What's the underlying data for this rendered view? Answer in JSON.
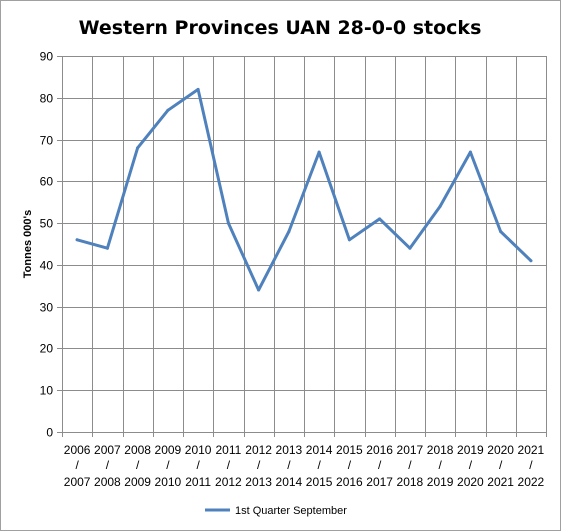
{
  "chart_data": {
    "type": "line",
    "title": "Western Provinces UAN 28-0-0 stocks",
    "xlabel": "",
    "ylabel": "Tonnes 000's",
    "ylim": [
      0,
      90
    ],
    "yticks": [
      0,
      10,
      20,
      30,
      40,
      50,
      60,
      70,
      80,
      90
    ],
    "grid": true,
    "legend_position": "bottom",
    "categories": [
      {
        "top": "2006",
        "sep": "/",
        "bottom": "2007"
      },
      {
        "top": "2007",
        "sep": "/",
        "bottom": "2008"
      },
      {
        "top": "2008",
        "sep": "/",
        "bottom": "2009"
      },
      {
        "top": "2009",
        "sep": "/",
        "bottom": "2010"
      },
      {
        "top": "2010",
        "sep": "/",
        "bottom": "2011"
      },
      {
        "top": "2011",
        "sep": "/",
        "bottom": "2012"
      },
      {
        "top": "2012",
        "sep": "/",
        "bottom": "2013"
      },
      {
        "top": "2013",
        "sep": "/",
        "bottom": "2014"
      },
      {
        "top": "2014",
        "sep": "/",
        "bottom": "2015"
      },
      {
        "top": "2015",
        "sep": "/",
        "bottom": "2016"
      },
      {
        "top": "2016",
        "sep": "/",
        "bottom": "2017"
      },
      {
        "top": "2017",
        "sep": "/",
        "bottom": "2018"
      },
      {
        "top": "2018",
        "sep": "/",
        "bottom": "2019"
      },
      {
        "top": "2019",
        "sep": "/",
        "bottom": "2020"
      },
      {
        "top": "2020",
        "sep": "/",
        "bottom": "2021"
      },
      {
        "top": "2021",
        "sep": "/",
        "bottom": "2022"
      }
    ],
    "series": [
      {
        "name": "1st Quarter September",
        "color": "#4f81bd",
        "values": [
          46,
          44,
          68,
          77,
          82,
          50,
          34,
          48,
          67,
          46,
          51,
          44,
          54,
          67,
          48,
          41
        ]
      }
    ]
  }
}
